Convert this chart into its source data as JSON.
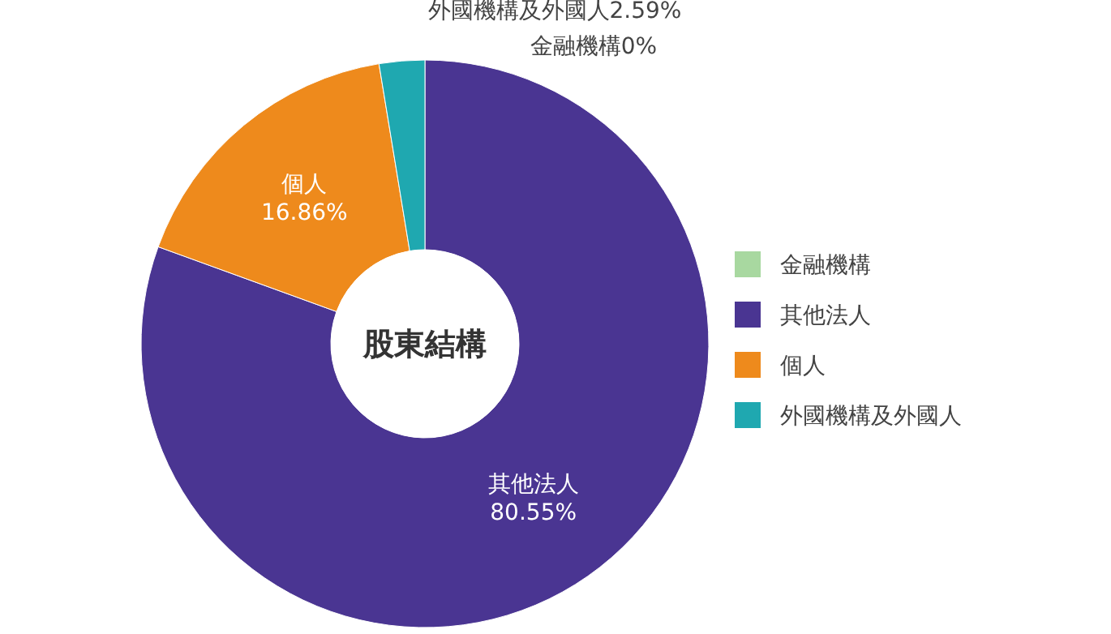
{
  "chart_data": {
    "type": "donut",
    "title": "股東結構",
    "categories": [
      "金融機構",
      "其他法人",
      "個人",
      "外國機構及外國人"
    ],
    "values": [
      0,
      80.55,
      16.86,
      2.59
    ],
    "value_labels": [
      "0%",
      "80.55%",
      "16.86%",
      "2.59%"
    ],
    "colors": [
      "#a8d8a0",
      "#4a3592",
      "#ee8a1c",
      "#1fa8b0"
    ],
    "legend": "right"
  }
}
